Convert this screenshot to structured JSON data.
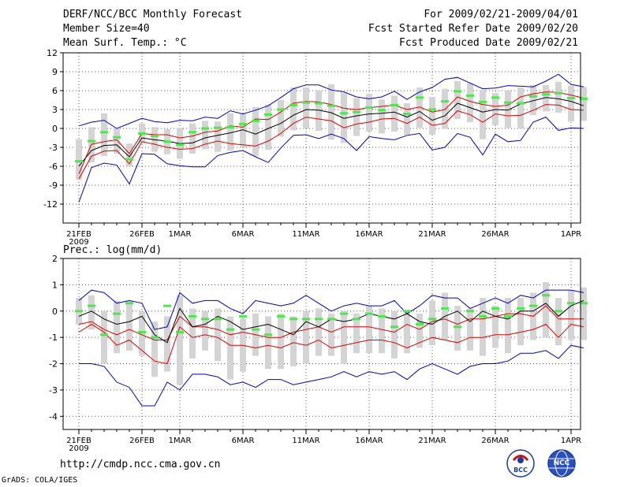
{
  "header": {
    "line1_left": "DERF/NCC/BCC Monthly Forecast",
    "line2_left": "Member Size=40",
    "line3_left": "Mean Surf. Temp.: °C",
    "line1_right": "For 2009/02/21-2009/04/01",
    "line2_right": "Fcst Started Refer Date 2009/02/20",
    "line3_right": "Fcst Produced Date 2009/02/21"
  },
  "footer": {
    "url": "http://cmdp.ncc.cma.gov.cn",
    "grads": "GrADS: COLA/IGES",
    "logo_bcc": "BCC",
    "logo_ncc": "NCC"
  },
  "colors": {
    "blue": "#0000cc",
    "red": "#dd0000",
    "black": "#000000",
    "green": "#44ee44",
    "bar": "#d4d4d4"
  },
  "chart_data": [
    {
      "type": "line",
      "title": "Mean Surf. Temp.: °C",
      "x_tick_labels": [
        "21FEB",
        "26FEB",
        "1MAR",
        "6MAR",
        "11MAR",
        "16MAR",
        "21MAR",
        "26MAR",
        "1APR"
      ],
      "x_tick_days": [
        0,
        5,
        8,
        13,
        18,
        23,
        28,
        33,
        39
      ],
      "x_sublabel": "2009",
      "xlim": [
        0,
        40
      ],
      "ylim": [
        -15,
        12
      ],
      "y_ticks": [
        -12,
        -9,
        -6,
        -3,
        0,
        3,
        6,
        9,
        12
      ],
      "grid": true,
      "series": [
        {
          "name": "ensemble max",
          "color": "blue",
          "values": [
            0.4,
            1.0,
            1.3,
            0.0,
            0.8,
            1.6,
            1.1,
            0.9,
            1.3,
            1.2,
            1.8,
            1.6,
            2.8,
            2.3,
            2.9,
            3.6,
            4.9,
            6.3,
            6.9,
            6.9,
            6.1,
            5.8,
            5.0,
            4.7,
            5.0,
            5.9,
            4.6,
            5.8,
            6.5,
            7.8,
            8.1,
            7.2,
            6.3,
            6.4,
            6.8,
            6.7,
            6.6,
            7.5,
            8.6,
            7.0,
            6.6
          ]
        },
        {
          "name": "ensemble min",
          "color": "blue",
          "values": [
            -11.7,
            -6.2,
            -5.5,
            -5.8,
            -8.8,
            -4.0,
            -4.1,
            -5.6,
            -5.9,
            -6.1,
            -6.1,
            -4.3,
            -3.8,
            -3.5,
            -4.5,
            -5.4,
            -3.1,
            -1.1,
            -1.0,
            -1.6,
            -0.9,
            -1.6,
            -3.5,
            -1.3,
            -1.6,
            -1.8,
            -1.1,
            -0.8,
            -3.4,
            -3.0,
            -0.8,
            -1.4,
            -4.2,
            -0.9,
            -2.1,
            -1.9,
            1.0,
            1.8,
            -0.3,
            0.1,
            0.0
          ]
        },
        {
          "name": "upper spread",
          "color": "red",
          "values": [
            -7.2,
            -2.5,
            -2.1,
            -1.8,
            -4.0,
            -0.8,
            -1.0,
            -1.0,
            -1.5,
            -1.2,
            -0.6,
            -0.4,
            0.4,
            0.2,
            1.5,
            1.4,
            2.6,
            4.0,
            4.3,
            4.2,
            3.8,
            3.2,
            3.0,
            3.3,
            3.5,
            3.7,
            3.0,
            3.4,
            2.6,
            3.0,
            5.0,
            4.3,
            3.8,
            3.5,
            3.7,
            5.0,
            5.5,
            5.8,
            5.7,
            5.3,
            4.8
          ]
        },
        {
          "name": "lower spread",
          "color": "red",
          "values": [
            -8.0,
            -4.4,
            -3.6,
            -3.5,
            -5.6,
            -2.1,
            -2.5,
            -3.0,
            -3.3,
            -3.2,
            -2.5,
            -2.0,
            -2.4,
            -2.6,
            -2.8,
            -2.0,
            -0.8,
            0.8,
            1.8,
            1.5,
            1.2,
            0.1,
            0.7,
            1.0,
            1.5,
            1.6,
            0.8,
            1.8,
            0.5,
            0.8,
            2.8,
            2.2,
            1.0,
            2.3,
            2.0,
            2.1,
            2.9,
            3.8,
            3.7,
            3.0,
            2.9
          ]
        },
        {
          "name": "ensemble mean",
          "color": "black",
          "values": [
            -6.0,
            -3.5,
            -2.7,
            -2.6,
            -4.5,
            -1.5,
            -1.8,
            -2.0,
            -2.4,
            -2.3,
            -1.5,
            -1.1,
            -0.7,
            -0.2,
            -0.9,
            0.0,
            0.8,
            2.1,
            3.0,
            2.9,
            2.5,
            1.6,
            2.0,
            2.3,
            2.4,
            2.6,
            1.8,
            2.7,
            1.3,
            2.0,
            4.0,
            3.3,
            2.6,
            3.0,
            2.9,
            3.9,
            4.4,
            4.9,
            4.7,
            4.3,
            3.6
          ]
        },
        {
          "name": "observed",
          "color": "green",
          "style": "dash",
          "values": [
            -5.2,
            -2.0,
            -0.6,
            -1.4,
            -4.9,
            -0.8,
            -1.2,
            -2.1,
            -2.6,
            -0.6,
            0.0,
            0.1,
            0.2,
            0.7,
            1.2,
            2.2,
            3.0,
            3.7,
            4.1,
            4.0,
            3.6,
            2.4,
            2.6,
            3.3,
            2.9,
            3.7,
            2.3,
            4.9,
            3.0,
            4.3,
            5.9,
            5.2,
            4.2,
            4.9,
            4.1,
            4.0,
            5.1,
            5.4,
            5.6,
            4.8,
            4.7
          ]
        },
        {
          "name": "box upper",
          "color": "bar",
          "style": "box",
          "values": [
            -1.7,
            0.2,
            2.4,
            0.0,
            -2.4,
            0.8,
            0.2,
            -0.1,
            0.1,
            0.8,
            1.2,
            1.1,
            2.4,
            2.3,
            3.4,
            3.8,
            4.5,
            6.5,
            6.5,
            6.0,
            7.0,
            5.6,
            4.8,
            5.5,
            4.6,
            5.2,
            4.0,
            6.5,
            5.0,
            6.3,
            7.5,
            7.2,
            6.1,
            5.6,
            6.0,
            6.5,
            6.9,
            6.9,
            7.4,
            6.8,
            6.6
          ]
        },
        {
          "name": "box lower",
          "color": "bar",
          "style": "box",
          "values": [
            -8.1,
            -5.4,
            -4.4,
            -4.0,
            -6.0,
            -2.3,
            -3.7,
            -4.1,
            -4.8,
            -4.0,
            -3.3,
            -3.7,
            -3.5,
            -3.0,
            -4.4,
            -3.4,
            -1.3,
            -0.3,
            0.0,
            -0.4,
            -1.8,
            -2.3,
            -1.2,
            -0.5,
            -0.8,
            -0.5,
            -1.0,
            0.1,
            -1.0,
            -0.1,
            1.5,
            1.0,
            -1.7,
            0.5,
            0.1,
            0.0,
            2.1,
            2.7,
            2.5,
            1.1,
            1.2
          ]
        }
      ]
    },
    {
      "type": "line",
      "title": "Prec.: log(mm/d)",
      "x_tick_labels": [
        "21FEB",
        "26FEB",
        "1MAR",
        "6MAR",
        "11MAR",
        "16MAR",
        "21MAR",
        "26MAR",
        "1APR"
      ],
      "x_tick_days": [
        0,
        5,
        8,
        13,
        18,
        23,
        28,
        33,
        39
      ],
      "x_sublabel": "2009",
      "xlim": [
        0,
        40
      ],
      "ylim": [
        -4.5,
        2
      ],
      "y_ticks": [
        -4,
        -3,
        -2,
        -1,
        0,
        1,
        2
      ],
      "grid": true,
      "series": [
        {
          "name": "ensemble max",
          "color": "blue",
          "values": [
            0.4,
            0.8,
            0.7,
            0.3,
            0.4,
            0.3,
            -0.7,
            -0.6,
            0.7,
            0.3,
            0.4,
            0.4,
            0.1,
            -0.1,
            0.4,
            0.3,
            0.2,
            0.3,
            0.6,
            0.3,
            0.0,
            0.2,
            0.3,
            0.2,
            0.2,
            0.4,
            -0.1,
            0.2,
            0.6,
            0.5,
            0.5,
            0.1,
            0.3,
            0.5,
            0.3,
            0.6,
            0.5,
            0.8,
            0.8,
            0.8,
            0.7
          ]
        },
        {
          "name": "ensemble min",
          "color": "blue",
          "values": [
            -2.0,
            -2.0,
            -2.1,
            -2.7,
            -2.9,
            -3.6,
            -3.6,
            -2.7,
            -3.0,
            -2.4,
            -2.4,
            -2.5,
            -2.8,
            -2.7,
            -2.9,
            -2.6,
            -2.6,
            -2.8,
            -2.7,
            -2.6,
            -2.5,
            -2.3,
            -2.5,
            -2.3,
            -2.4,
            -2.3,
            -2.6,
            -2.2,
            -2.0,
            -2.2,
            -2.4,
            -2.1,
            -2.0,
            -2.0,
            -1.9,
            -1.6,
            -1.6,
            -1.5,
            -1.8,
            -1.3,
            -1.4
          ]
        },
        {
          "name": "upper spread",
          "color": "red",
          "values": [
            -0.5,
            -0.4,
            -0.7,
            -0.9,
            -0.7,
            -0.9,
            -1.1,
            -1.1,
            -0.2,
            -0.6,
            -0.6,
            -0.7,
            -0.9,
            -0.8,
            -0.9,
            -1.0,
            -1.0,
            -0.8,
            -0.7,
            -0.6,
            -0.8,
            -0.6,
            -0.6,
            -0.6,
            -0.7,
            -0.8,
            -0.5,
            -0.7,
            -0.4,
            -0.3,
            -0.5,
            -0.3,
            -0.3,
            -0.2,
            -0.1,
            -0.1,
            -0.2,
            0.2,
            -0.3,
            -0.3,
            -0.3
          ]
        },
        {
          "name": "lower spread",
          "color": "red",
          "values": [
            -0.8,
            -0.5,
            -0.8,
            -1.3,
            -1.1,
            -1.5,
            -1.9,
            -2.0,
            -0.6,
            -1.0,
            -0.9,
            -1.0,
            -1.3,
            -1.3,
            -1.4,
            -1.3,
            -1.4,
            -1.2,
            -1.3,
            -1.1,
            -1.4,
            -1.3,
            -1.2,
            -1.1,
            -1.1,
            -1.2,
            -1.4,
            -1.2,
            -1.0,
            -1.1,
            -1.2,
            -1.0,
            -1.0,
            -0.9,
            -0.9,
            -0.8,
            -0.7,
            -0.5,
            -1.0,
            -0.5,
            -0.6
          ]
        },
        {
          "name": "ensemble mean",
          "color": "black",
          "values": [
            -0.2,
            0.0,
            -0.3,
            -0.5,
            -0.4,
            -0.2,
            -0.9,
            -1.2,
            0.1,
            -0.6,
            -0.5,
            -0.2,
            -0.4,
            -0.7,
            -0.6,
            -0.5,
            -0.7,
            -0.9,
            -0.4,
            -0.6,
            -0.3,
            -0.4,
            -0.3,
            -0.1,
            -0.2,
            -0.3,
            -0.1,
            -0.4,
            -0.5,
            -0.2,
            0.0,
            -0.4,
            0.0,
            -0.2,
            -0.3,
            0.0,
            0.0,
            0.3,
            -0.2,
            0.2,
            0.4
          ]
        },
        {
          "name": "observed",
          "color": "green",
          "style": "dash",
          "values": [
            0.0,
            0.2,
            -0.9,
            -0.1,
            0.3,
            -0.8,
            -1.0,
            0.2,
            -0.8,
            -0.2,
            -0.3,
            -0.3,
            -0.7,
            -0.2,
            -0.7,
            -0.9,
            -0.2,
            -0.3,
            -0.3,
            -0.3,
            -0.3,
            -0.1,
            -0.3,
            -0.1,
            -0.2,
            -0.6,
            0.0,
            -0.5,
            -0.3,
            0.1,
            -0.6,
            0.0,
            -0.2,
            0.1,
            -0.2,
            0.1,
            0.2,
            0.6,
            0.0,
            0.3,
            0.3
          ]
        },
        {
          "name": "box upper",
          "color": "bar",
          "style": "box",
          "values": [
            0.5,
            0.6,
            0.0,
            0.4,
            0.4,
            0.0,
            -0.4,
            -0.2,
            0.6,
            0.1,
            0.0,
            0.1,
            -0.2,
            -0.3,
            -0.1,
            -0.2,
            -0.1,
            -0.2,
            0.0,
            0.1,
            -0.1,
            0.0,
            -0.1,
            0.2,
            0.1,
            0.0,
            0.0,
            -0.1,
            0.4,
            0.7,
            0.2,
            0.1,
            0.5,
            0.2,
            0.5,
            0.5,
            0.7,
            1.1,
            0.5,
            0.8,
            0.9
          ]
        },
        {
          "name": "box lower",
          "color": "bar",
          "style": "box",
          "values": [
            -0.5,
            -0.7,
            -2.0,
            -1.6,
            -1.5,
            -1.7,
            -2.5,
            -2.3,
            -2.8,
            -1.8,
            -1.5,
            -1.9,
            -2.6,
            -2.3,
            -1.7,
            -2.2,
            -2.2,
            -2.1,
            -2.0,
            -1.7,
            -1.7,
            -2.0,
            -1.6,
            -1.6,
            -1.6,
            -1.8,
            -1.6,
            -1.4,
            -1.3,
            -1.1,
            -1.5,
            -1.5,
            -1.7,
            -1.4,
            -1.6,
            -1.3,
            -1.1,
            -1.0,
            -1.3,
            -1.1,
            -1.1
          ]
        }
      ]
    }
  ]
}
